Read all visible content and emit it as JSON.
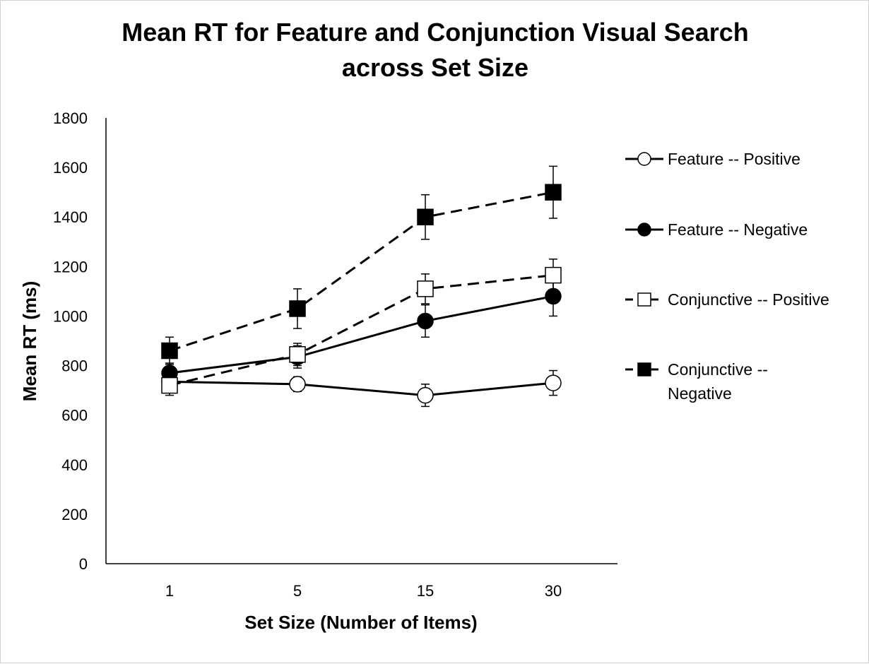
{
  "chart_data": {
    "type": "line",
    "title_lines": [
      "Mean RT for Feature and Conjunction Visual Search",
      "across Set Size"
    ],
    "xlabel": "Set Size (Number of Items)",
    "ylabel": "Mean RT (ms)",
    "categories": [
      "1",
      "5",
      "15",
      "30"
    ],
    "ylim": [
      0,
      1800
    ],
    "yticks": [
      0,
      200,
      400,
      600,
      800,
      1000,
      1200,
      1400,
      1600,
      1800
    ],
    "grid": false,
    "legend_position": "right",
    "series": [
      {
        "name": "Feature -- Positive",
        "legend_lines": [
          "Feature -- Positive"
        ],
        "values": [
          735,
          725,
          680,
          730
        ],
        "errors": [
          35,
          30,
          45,
          50
        ],
        "marker": "circle",
        "marker_fill": "#ffffff",
        "line_style": "solid",
        "color": "#000000"
      },
      {
        "name": "Feature -- Negative",
        "legend_lines": [
          "Feature -- Negative"
        ],
        "values": [
          770,
          835,
          980,
          1080
        ],
        "errors": [
          40,
          45,
          65,
          80
        ],
        "marker": "circle",
        "marker_fill": "#000000",
        "line_style": "solid",
        "color": "#000000"
      },
      {
        "name": "Conjunctive -- Positive",
        "legend_lines": [
          "Conjunctive -- Positive"
        ],
        "values": [
          720,
          845,
          1110,
          1165
        ],
        "errors": [
          40,
          45,
          60,
          65
        ],
        "marker": "square",
        "marker_fill": "#ffffff",
        "line_style": "dashed",
        "color": "#000000"
      },
      {
        "name": "Conjunctive -- Negative",
        "legend_lines": [
          "Conjunctive --",
          "Negative"
        ],
        "values": [
          860,
          1030,
          1400,
          1500
        ],
        "errors": [
          55,
          80,
          90,
          105
        ],
        "marker": "square",
        "marker_fill": "#000000",
        "line_style": "dashed",
        "color": "#000000"
      }
    ]
  }
}
